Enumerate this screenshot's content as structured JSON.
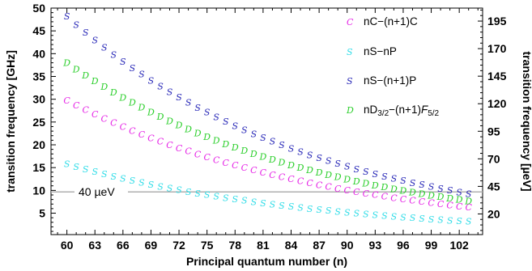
{
  "chart_data": {
    "type": "scatter",
    "xlabel": "Principal quantum number (n)",
    "ylabel": "transition frequency [GHz]",
    "ylabel_right": "transition frequency [µeV]",
    "x_ticks": [
      "60",
      "63",
      "66",
      "69",
      "72",
      "75",
      "78",
      "81",
      "84",
      "87",
      "90",
      "93",
      "96",
      "99",
      "102"
    ],
    "y_ticks": [
      "5",
      "10",
      "15",
      "20",
      "25",
      "30",
      "35",
      "40",
      "45",
      "50"
    ],
    "y_right_ticks": [
      "20",
      "45",
      "70",
      "95",
      "120",
      "145",
      "170",
      "195"
    ],
    "xlim": [
      58.3,
      104.5
    ],
    "ylim": [
      0.3,
      50
    ],
    "grid": false,
    "legend_placement": "top-right",
    "annotation": {
      "text": "40 µeV",
      "value": 9.67
    },
    "series": [
      {
        "name": "nC−(n+1)C",
        "name_main": "nC−(n+1)C",
        "marker": "C",
        "color": "#e628e6",
        "x_start": 60,
        "x_end": 103,
        "y_start": 29.8,
        "y_end": 6.3
      },
      {
        "name": "nS−nP",
        "name_main": "nS−nP",
        "marker": "S",
        "color": "#33dde8",
        "x_start": 60,
        "x_end": 103,
        "y_start": 15.8,
        "y_end": 3.2
      },
      {
        "name": "nS−(n+1)P",
        "name_main": "nS−(n+1)P",
        "marker": "S",
        "color": "#2a2ab8",
        "x_start": 60,
        "x_end": 103,
        "y_start": 48.2,
        "y_end": 9.3
      },
      {
        "name": "nD3/2−(n+1)F5/2",
        "name_main": "nD",
        "name_sub1": "3/2",
        "name_mid": "−(n+1)",
        "name_italic": "F",
        "name_sub2": "5/2",
        "marker": "D",
        "color": "#2ccf2c",
        "x_start": 60,
        "x_end": 103,
        "y_start": 38.0,
        "y_end": 7.7
      }
    ]
  },
  "colors": {
    "frame": "#000000",
    "annotation_line": "#b0b0b0"
  }
}
